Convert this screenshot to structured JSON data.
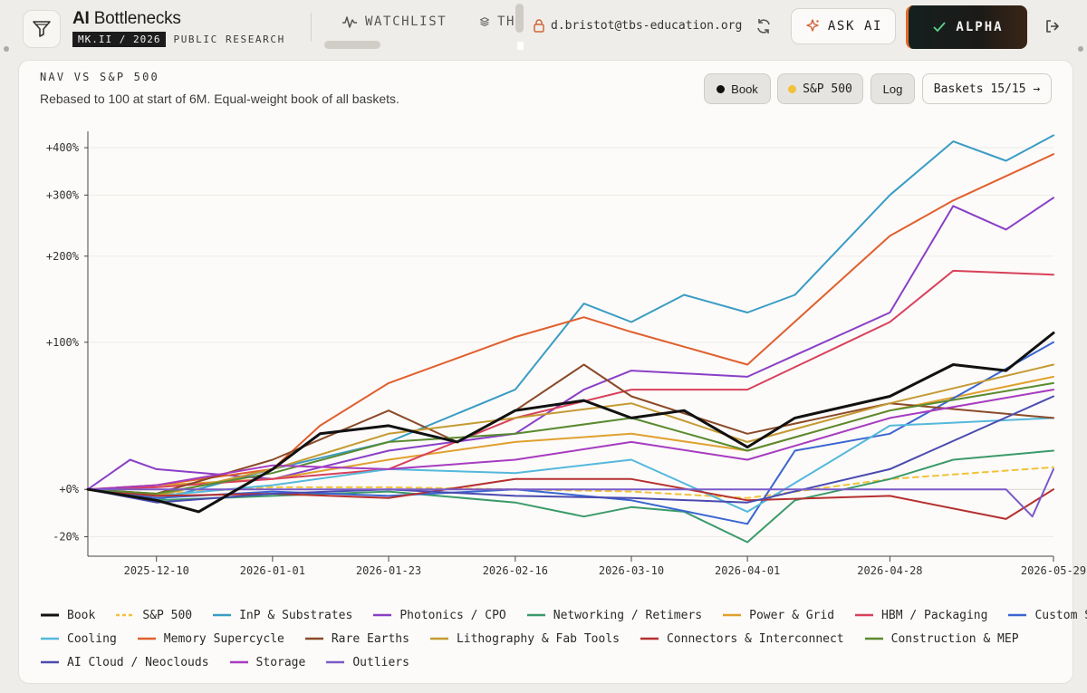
{
  "header": {
    "brand_prefix": "AI",
    "brand_name": "Bottlenecks",
    "brand_tag": "MK.II / 2026",
    "brand_pub": "PUBLIC RESEARCH",
    "nav": [
      {
        "label": "WATCHLIST",
        "icon": "pulse-icon"
      },
      {
        "label": "TH",
        "icon": "layers-icon"
      }
    ],
    "user_email": "d.bristot@tbs-education.org",
    "ask_ai_label": "ASK AI",
    "alpha_label": "ALPHA"
  },
  "card": {
    "title": "NAV VS S&P 500",
    "subtitle": "Rebased to 100 at start of 6M. Equal-weight book of all baskets.",
    "toggles": {
      "book": "Book",
      "sp": "S&P 500",
      "log": "Log",
      "baskets": "Baskets 15/15 →"
    }
  },
  "chart_data": {
    "type": "line",
    "title": "NAV VS S&P 500",
    "subtitle": "Rebased to 100 at start of 6M. Equal-weight book of all baskets.",
    "y_scale": "log",
    "y_ticks": [
      "+400%",
      "+300%",
      "+200%",
      "+100%",
      "+0%",
      "-20%"
    ],
    "y_tick_values": [
      400,
      300,
      200,
      100,
      0,
      -20
    ],
    "x_ticks": [
      "2025-12-10",
      "2026-01-01",
      "2026-01-23",
      "2026-02-16",
      "2026-03-10",
      "2026-04-01",
      "2026-04-28",
      "2026-05-29"
    ],
    "x_range": [
      "2025-11-27",
      "2026-05-29"
    ],
    "ylim": [
      -27,
      440
    ],
    "grid": "horizontal",
    "legend_position": "bottom",
    "series": [
      {
        "name": "Book",
        "color": "#111111",
        "dashed": false,
        "width": 3,
        "x": [
          "2025-11-27",
          "2025-12-10",
          "2025-12-18",
          "2026-01-01",
          "2026-01-10",
          "2026-01-23",
          "2026-02-05",
          "2026-02-16",
          "2026-03-01",
          "2026-03-10",
          "2026-03-20",
          "2026-04-01",
          "2026-04-10",
          "2026-04-28",
          "2026-05-10",
          "2026-05-20",
          "2026-05-29"
        ],
        "y": [
          0,
          -5,
          -10,
          10,
          30,
          35,
          25,
          45,
          52,
          40,
          45,
          22,
          40,
          55,
          80,
          75,
          109
        ]
      },
      {
        "name": "S&P 500",
        "color": "#f2c13a",
        "dashed": true,
        "width": 2,
        "x": [
          "2025-11-27",
          "2025-12-10",
          "2026-01-01",
          "2026-01-23",
          "2026-02-16",
          "2026-03-10",
          "2026-04-01",
          "2026-04-28",
          "2026-05-29"
        ],
        "y": [
          0,
          -2,
          1,
          1,
          0,
          -1,
          -4,
          5,
          11
        ]
      },
      {
        "name": "InP & Substrates",
        "color": "#3a9cc4",
        "dashed": false,
        "width": 2,
        "x": [
          "2025-11-27",
          "2025-12-10",
          "2026-01-01",
          "2026-01-23",
          "2026-02-16",
          "2026-03-01",
          "2026-03-10",
          "2026-03-20",
          "2026-04-01",
          "2026-04-10",
          "2026-04-28",
          "2026-05-10",
          "2026-05-20",
          "2026-05-29"
        ],
        "y": [
          0,
          -5,
          10,
          25,
          60,
          140,
          120,
          150,
          130,
          150,
          300,
          415,
          370,
          430
        ]
      },
      {
        "name": "Photonics / CPO",
        "color": "#8a3fc7",
        "dashed": false,
        "width": 2,
        "x": [
          "2025-11-27",
          "2025-12-05",
          "2025-12-10",
          "2026-01-01",
          "2026-01-23",
          "2026-02-16",
          "2026-03-01",
          "2026-03-10",
          "2026-04-01",
          "2026-04-28",
          "2026-05-10",
          "2026-05-20",
          "2026-05-29"
        ],
        "y": [
          0,
          15,
          10,
          5,
          20,
          30,
          60,
          75,
          70,
          130,
          280,
          240,
          295
        ]
      },
      {
        "name": "Networking / Retimers",
        "color": "#3c9a6a",
        "dashed": false,
        "width": 2,
        "x": [
          "2025-11-27",
          "2025-12-10",
          "2026-01-01",
          "2026-01-23",
          "2026-02-16",
          "2026-03-01",
          "2026-03-10",
          "2026-03-20",
          "2026-04-01",
          "2026-04-10",
          "2026-04-28",
          "2026-05-10",
          "2026-05-29"
        ],
        "y": [
          0,
          -5,
          -3,
          -1,
          -6,
          -12,
          -8,
          -10,
          -22,
          -5,
          5,
          15,
          20
        ]
      },
      {
        "name": "Power & Grid",
        "color": "#e0a030",
        "dashed": false,
        "width": 2,
        "x": [
          "2025-11-27",
          "2025-12-10",
          "2026-01-01",
          "2026-01-23",
          "2026-02-16",
          "2026-03-10",
          "2026-04-01",
          "2026-04-28",
          "2026-05-29"
        ],
        "y": [
          0,
          2,
          5,
          15,
          25,
          30,
          20,
          45,
          70
        ]
      },
      {
        "name": "HBM / Packaging",
        "color": "#d8405a",
        "dashed": false,
        "width": 2,
        "x": [
          "2025-11-27",
          "2025-12-10",
          "2026-01-01",
          "2026-01-23",
          "2026-02-16",
          "2026-03-10",
          "2026-04-01",
          "2026-04-28",
          "2026-05-10",
          "2026-05-29"
        ],
        "y": [
          0,
          1,
          5,
          10,
          40,
          60,
          60,
          120,
          180,
          175
        ]
      },
      {
        "name": "Custom Silicon",
        "color": "#3a66d1",
        "dashed": false,
        "width": 2,
        "x": [
          "2025-11-27",
          "2025-12-10",
          "2026-01-01",
          "2026-01-23",
          "2026-02-16",
          "2026-03-10",
          "2026-04-01",
          "2026-04-10",
          "2026-04-28",
          "2026-05-29"
        ],
        "y": [
          0,
          -4,
          -1,
          -3,
          0,
          -5,
          -15,
          20,
          30,
          100
        ]
      },
      {
        "name": "Cooling",
        "color": "#55b8dc",
        "dashed": false,
        "width": 2,
        "x": [
          "2025-11-27",
          "2025-12-10",
          "2026-01-01",
          "2026-01-23",
          "2026-02-16",
          "2026-03-10",
          "2026-04-01",
          "2026-04-28",
          "2026-05-29"
        ],
        "y": [
          0,
          -3,
          2,
          10,
          8,
          15,
          -10,
          35,
          40
        ]
      },
      {
        "name": "Memory Supercycle",
        "color": "#e0602e",
        "dashed": false,
        "width": 2,
        "x": [
          "2025-11-27",
          "2025-12-10",
          "2026-01-01",
          "2026-01-10",
          "2026-01-23",
          "2026-02-16",
          "2026-03-01",
          "2026-03-10",
          "2026-04-01",
          "2026-04-28",
          "2026-05-10",
          "2026-05-29"
        ],
        "y": [
          0,
          2,
          10,
          35,
          65,
          105,
          125,
          110,
          80,
          230,
          290,
          385
        ]
      },
      {
        "name": "Rare Earths",
        "color": "#8b4a28",
        "dashed": false,
        "width": 2,
        "x": [
          "2025-11-27",
          "2025-12-10",
          "2026-01-01",
          "2026-01-23",
          "2026-02-05",
          "2026-02-16",
          "2026-03-01",
          "2026-03-10",
          "2026-04-01",
          "2026-04-28",
          "2026-05-29"
        ],
        "y": [
          0,
          -2,
          15,
          45,
          25,
          45,
          80,
          55,
          30,
          50,
          40
        ]
      },
      {
        "name": "Lithography & Fab Tools",
        "color": "#c49a32",
        "dashed": false,
        "width": 2,
        "x": [
          "2025-11-27",
          "2025-12-10",
          "2026-01-01",
          "2026-01-23",
          "2026-02-16",
          "2026-03-10",
          "2026-04-01",
          "2026-04-28",
          "2026-05-29"
        ],
        "y": [
          0,
          -3,
          10,
          30,
          40,
          50,
          25,
          50,
          80
        ]
      },
      {
        "name": "Connectors & Interconnect",
        "color": "#b53030",
        "dashed": false,
        "width": 2,
        "x": [
          "2025-11-27",
          "2025-12-10",
          "2026-01-01",
          "2026-01-23",
          "2026-02-16",
          "2026-03-10",
          "2026-04-01",
          "2026-04-28",
          "2026-05-20",
          "2026-05-29"
        ],
        "y": [
          0,
          -3,
          -2,
          -4,
          5,
          5,
          -5,
          -3,
          -13,
          0
        ]
      },
      {
        "name": "Construction & MEP",
        "color": "#5a8a30",
        "dashed": false,
        "width": 2,
        "x": [
          "2025-11-27",
          "2025-12-10",
          "2026-01-01",
          "2026-01-23",
          "2026-02-16",
          "2026-03-10",
          "2026-04-01",
          "2026-04-28",
          "2026-05-29"
        ],
        "y": [
          0,
          -2,
          8,
          25,
          30,
          40,
          20,
          45,
          65
        ]
      },
      {
        "name": "AI Cloud / Neoclouds",
        "color": "#4a4ab0",
        "dashed": false,
        "width": 2,
        "x": [
          "2025-11-27",
          "2025-12-10",
          "2026-01-01",
          "2026-01-23",
          "2026-02-16",
          "2026-03-10",
          "2026-04-01",
          "2026-04-28",
          "2026-05-29"
        ],
        "y": [
          0,
          -6,
          -2,
          0,
          -3,
          -4,
          -6,
          10,
          55
        ]
      },
      {
        "name": "Storage",
        "color": "#a63cc0",
        "dashed": false,
        "width": 2,
        "x": [
          "2025-11-27",
          "2025-12-10",
          "2026-01-01",
          "2026-01-23",
          "2026-02-16",
          "2026-03-10",
          "2026-04-01",
          "2026-04-28",
          "2026-05-29"
        ],
        "y": [
          0,
          2,
          12,
          10,
          15,
          25,
          15,
          40,
          60
        ]
      },
      {
        "name": "Outliers",
        "color": "#7a5ac8",
        "dashed": false,
        "width": 2,
        "x": [
          "2025-11-27",
          "2026-02-16",
          "2026-05-20",
          "2026-05-25",
          "2026-05-29"
        ],
        "y": [
          0,
          0,
          0,
          -12,
          10
        ]
      }
    ]
  }
}
